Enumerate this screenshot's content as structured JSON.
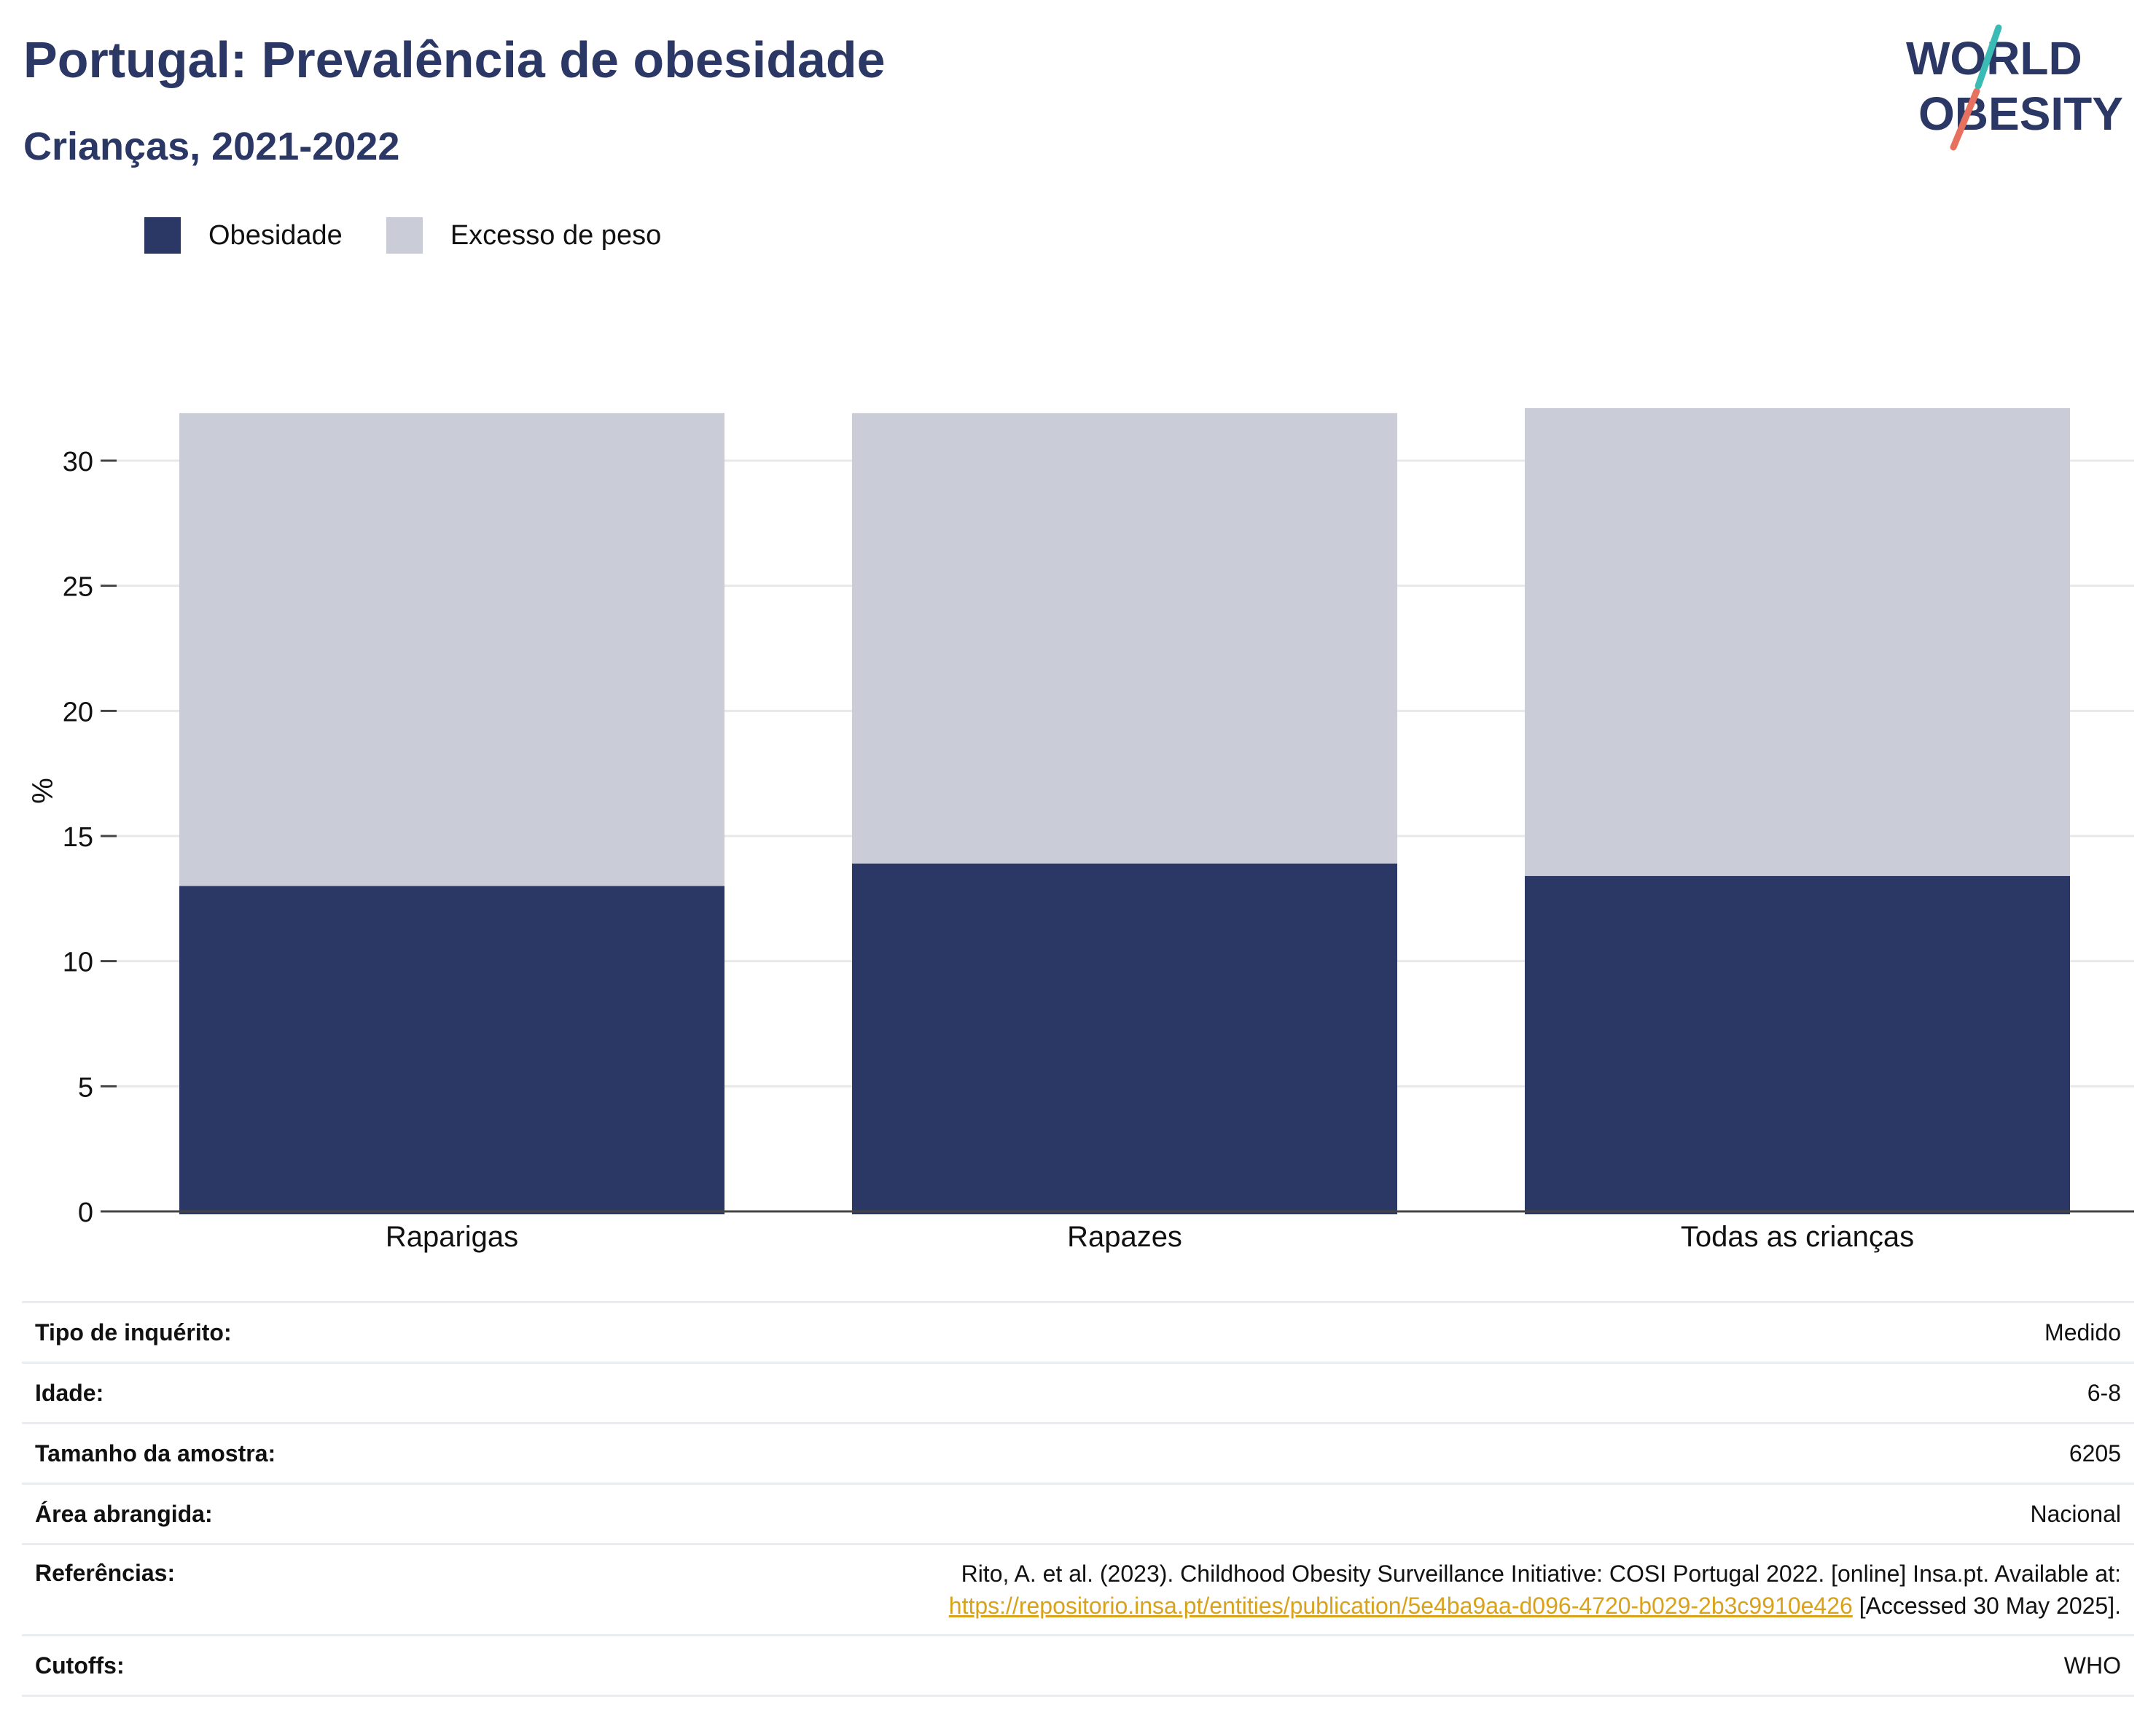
{
  "title": "Portugal: Prevalência de obesidade",
  "subtitle": "Crianças, 2021-2022",
  "logo": {
    "line1": "WORLD",
    "line2": "OBESITY"
  },
  "legend": [
    {
      "label": "Obesidade",
      "color": "#2b3764"
    },
    {
      "label": "Excesso de peso",
      "color": "#cacdd8"
    }
  ],
  "chart_data": {
    "type": "bar",
    "stacked": false,
    "overlap": true,
    "categories": [
      "Raparigas",
      "Rapazes",
      "Todas as crianças"
    ],
    "series": [
      {
        "name": "Excesso de peso",
        "values": [
          31.9,
          31.9,
          32.1
        ],
        "color": "#cacdd8"
      },
      {
        "name": "Obesidade",
        "values": [
          13.0,
          13.9,
          13.4
        ],
        "color": "#2b3764"
      }
    ],
    "ylabel": "%",
    "ylim": [
      0,
      32.5
    ],
    "yticks": [
      "0",
      "5",
      "10",
      "15",
      "20",
      "25",
      "30"
    ],
    "grid": true,
    "legend_position": "top-left"
  },
  "info": [
    {
      "key": "Tipo de inquérito:",
      "value": "Medido"
    },
    {
      "key": "Idade:",
      "value": "6-8"
    },
    {
      "key": "Tamanho da amostra:",
      "value": "6205"
    },
    {
      "key": "Área abrangida:",
      "value": "Nacional"
    },
    {
      "key": "Referências:",
      "value": "Rito, A. et al. (2023). Childhood Obesity Surveillance Initiative: COSI Portugal 2022. [online] Insa.pt. Available at:",
      "link": "https://repositorio.insa.pt/entities/publication/5e4ba9aa-d096-4720-b029-2b3c9910e426",
      "suffix": " [Accessed 30 May 2025]."
    },
    {
      "key": "Cutoffs:",
      "value": "WHO"
    }
  ]
}
